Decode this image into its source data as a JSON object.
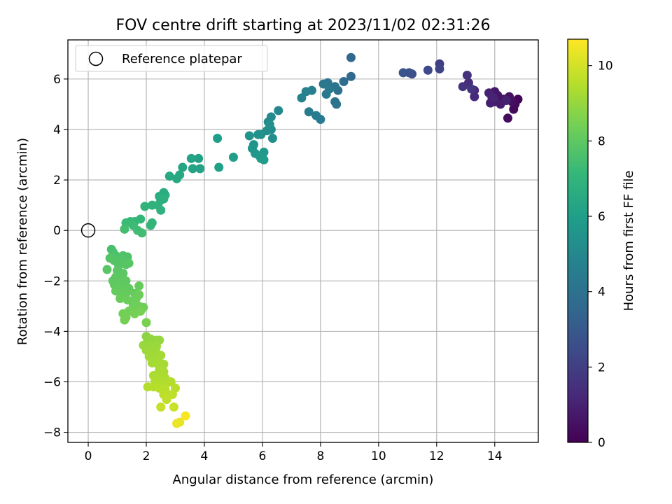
{
  "chart_data": {
    "type": "scatter",
    "title": "FOV centre drift starting at 2023/11/02 02:31:26",
    "xlabel": "Angular distance from reference (arcmin)",
    "ylabel": "Rotation from reference (arcmin)",
    "xlim": [
      -0.7,
      15.5
    ],
    "ylim": [
      -8.4,
      7.55
    ],
    "xticks": [
      0,
      2,
      4,
      6,
      8,
      10,
      12,
      14
    ],
    "yticks": [
      -8,
      -6,
      -4,
      -2,
      0,
      2,
      4,
      6
    ],
    "grid": true,
    "legend": {
      "placement": "top-left",
      "entries": [
        "Reference platepar"
      ]
    },
    "reference_point": {
      "label": "Reference platepar",
      "x": 0,
      "y": 0,
      "marker": "open-circle"
    },
    "colorbar": {
      "label": "Hours from first FF file",
      "range": [
        0,
        10.7
      ],
      "ticks": [
        0,
        2,
        4,
        6,
        8,
        10
      ],
      "colormap": "viridis"
    },
    "series": [
      {
        "name": "FOV centre drift",
        "points": [
          {
            "x": 14.8,
            "y": 5.2,
            "c": 0.1
          },
          {
            "x": 14.7,
            "y": 5.0,
            "c": 0.2
          },
          {
            "x": 14.65,
            "y": 4.8,
            "c": 0.25
          },
          {
            "x": 14.45,
            "y": 4.45,
            "c": 0.3
          },
          {
            "x": 14.6,
            "y": 5.1,
            "c": 0.4
          },
          {
            "x": 14.5,
            "y": 5.3,
            "c": 0.5
          },
          {
            "x": 14.3,
            "y": 5.2,
            "c": 0.55
          },
          {
            "x": 14.1,
            "y": 5.35,
            "c": 0.6
          },
          {
            "x": 14.0,
            "y": 5.5,
            "c": 0.7
          },
          {
            "x": 13.9,
            "y": 5.3,
            "c": 0.75
          },
          {
            "x": 14.0,
            "y": 5.1,
            "c": 0.8
          },
          {
            "x": 14.2,
            "y": 5.0,
            "c": 0.85
          },
          {
            "x": 13.85,
            "y": 5.05,
            "c": 0.9
          },
          {
            "x": 14.4,
            "y": 5.15,
            "c": 0.95
          },
          {
            "x": 13.8,
            "y": 5.45,
            "c": 1.0
          },
          {
            "x": 13.95,
            "y": 5.25,
            "c": 1.05
          },
          {
            "x": 13.3,
            "y": 5.55,
            "c": 1.2
          },
          {
            "x": 13.3,
            "y": 5.3,
            "c": 1.3
          },
          {
            "x": 13.1,
            "y": 5.85,
            "c": 1.4
          },
          {
            "x": 13.05,
            "y": 6.15,
            "c": 1.5
          },
          {
            "x": 12.9,
            "y": 5.7,
            "c": 1.6
          },
          {
            "x": 13.2,
            "y": 5.6,
            "c": 1.7
          },
          {
            "x": 12.1,
            "y": 6.6,
            "c": 2.0
          },
          {
            "x": 12.1,
            "y": 6.4,
            "c": 2.2
          },
          {
            "x": 11.7,
            "y": 6.35,
            "c": 2.4
          },
          {
            "x": 11.15,
            "y": 6.2,
            "c": 2.6
          },
          {
            "x": 11.05,
            "y": 6.25,
            "c": 2.7
          },
          {
            "x": 10.85,
            "y": 6.25,
            "c": 2.8
          },
          {
            "x": 9.05,
            "y": 6.85,
            "c": 3.6
          },
          {
            "x": 9.05,
            "y": 6.1,
            "c": 3.7
          },
          {
            "x": 8.8,
            "y": 5.9,
            "c": 3.8
          },
          {
            "x": 8.6,
            "y": 5.55,
            "c": 3.9
          },
          {
            "x": 8.5,
            "y": 5.1,
            "c": 4.0
          },
          {
            "x": 8.55,
            "y": 5.0,
            "c": 4.05
          },
          {
            "x": 8.5,
            "y": 5.7,
            "c": 4.1
          },
          {
            "x": 8.25,
            "y": 5.85,
            "c": 4.2
          },
          {
            "x": 8.1,
            "y": 5.8,
            "c": 4.25
          },
          {
            "x": 8.2,
            "y": 5.4,
            "c": 4.3
          },
          {
            "x": 8.3,
            "y": 5.6,
            "c": 4.35
          },
          {
            "x": 8.0,
            "y": 4.4,
            "c": 4.4
          },
          {
            "x": 7.85,
            "y": 4.55,
            "c": 4.45
          },
          {
            "x": 7.6,
            "y": 4.7,
            "c": 4.5
          },
          {
            "x": 7.7,
            "y": 5.55,
            "c": 4.6
          },
          {
            "x": 7.5,
            "y": 5.5,
            "c": 4.7
          },
          {
            "x": 7.35,
            "y": 5.25,
            "c": 4.8
          },
          {
            "x": 6.55,
            "y": 4.75,
            "c": 5.0
          },
          {
            "x": 6.3,
            "y": 4.5,
            "c": 5.1
          },
          {
            "x": 6.2,
            "y": 4.3,
            "c": 5.15
          },
          {
            "x": 6.3,
            "y": 4.0,
            "c": 5.2
          },
          {
            "x": 6.15,
            "y": 3.95,
            "c": 5.25
          },
          {
            "x": 6.35,
            "y": 3.65,
            "c": 5.3
          },
          {
            "x": 6.25,
            "y": 4.2,
            "c": 5.35
          },
          {
            "x": 5.95,
            "y": 3.8,
            "c": 5.4
          },
          {
            "x": 5.85,
            "y": 3.8,
            "c": 5.45
          },
          {
            "x": 5.55,
            "y": 3.75,
            "c": 5.5
          },
          {
            "x": 5.7,
            "y": 3.4,
            "c": 5.55
          },
          {
            "x": 5.65,
            "y": 3.25,
            "c": 5.6
          },
          {
            "x": 5.75,
            "y": 3.05,
            "c": 5.65
          },
          {
            "x": 5.9,
            "y": 2.95,
            "c": 5.7
          },
          {
            "x": 6.05,
            "y": 3.1,
            "c": 5.75
          },
          {
            "x": 5.95,
            "y": 2.85,
            "c": 5.8
          },
          {
            "x": 6.05,
            "y": 2.8,
            "c": 5.85
          },
          {
            "x": 5.0,
            "y": 2.9,
            "c": 5.95
          },
          {
            "x": 4.45,
            "y": 3.65,
            "c": 6.0
          },
          {
            "x": 4.5,
            "y": 2.5,
            "c": 6.05
          },
          {
            "x": 3.8,
            "y": 2.85,
            "c": 6.1
          },
          {
            "x": 3.85,
            "y": 2.45,
            "c": 6.15
          },
          {
            "x": 3.55,
            "y": 2.85,
            "c": 6.2
          },
          {
            "x": 3.6,
            "y": 2.45,
            "c": 6.25
          },
          {
            "x": 3.25,
            "y": 2.5,
            "c": 6.3
          },
          {
            "x": 3.15,
            "y": 2.2,
            "c": 6.35
          },
          {
            "x": 3.05,
            "y": 2.05,
            "c": 6.4
          },
          {
            "x": 2.8,
            "y": 2.15,
            "c": 6.45
          },
          {
            "x": 2.6,
            "y": 1.5,
            "c": 6.55
          },
          {
            "x": 2.65,
            "y": 1.4,
            "c": 6.6
          },
          {
            "x": 2.45,
            "y": 1.35,
            "c": 6.65
          },
          {
            "x": 2.5,
            "y": 1.2,
            "c": 6.7
          },
          {
            "x": 2.6,
            "y": 1.25,
            "c": 6.75
          },
          {
            "x": 2.4,
            "y": 1.0,
            "c": 6.8
          },
          {
            "x": 2.5,
            "y": 0.8,
            "c": 6.85
          },
          {
            "x": 2.2,
            "y": 1.0,
            "c": 6.9
          },
          {
            "x": 1.95,
            "y": 0.95,
            "c": 6.95
          },
          {
            "x": 2.2,
            "y": 0.3,
            "c": 7.0
          },
          {
            "x": 2.15,
            "y": 0.2,
            "c": 7.05
          },
          {
            "x": 1.8,
            "y": 0.45,
            "c": 7.1
          },
          {
            "x": 1.6,
            "y": 0.35,
            "c": 7.15
          },
          {
            "x": 1.45,
            "y": 0.35,
            "c": 7.2
          },
          {
            "x": 1.3,
            "y": 0.3,
            "c": 7.25
          },
          {
            "x": 1.55,
            "y": 0.2,
            "c": 7.3
          },
          {
            "x": 1.7,
            "y": 0.0,
            "c": 7.35
          },
          {
            "x": 1.85,
            "y": -0.1,
            "c": 7.4
          },
          {
            "x": 1.25,
            "y": 0.05,
            "c": 7.45
          },
          {
            "x": 0.8,
            "y": -0.75,
            "c": 7.55
          },
          {
            "x": 0.85,
            "y": -0.85,
            "c": 7.6
          },
          {
            "x": 0.95,
            "y": -1.0,
            "c": 7.65
          },
          {
            "x": 1.2,
            "y": -1.0,
            "c": 7.7
          },
          {
            "x": 1.35,
            "y": -1.05,
            "c": 7.72
          },
          {
            "x": 0.9,
            "y": -1.2,
            "c": 7.75
          },
          {
            "x": 1.1,
            "y": -1.2,
            "c": 7.78
          },
          {
            "x": 0.75,
            "y": -1.1,
            "c": 7.8
          },
          {
            "x": 1.05,
            "y": -1.4,
            "c": 7.82
          },
          {
            "x": 1.3,
            "y": -1.35,
            "c": 7.84
          },
          {
            "x": 1.4,
            "y": -1.3,
            "c": 7.86
          },
          {
            "x": 0.65,
            "y": -1.55,
            "c": 7.88
          },
          {
            "x": 1.0,
            "y": -1.6,
            "c": 7.9
          },
          {
            "x": 1.2,
            "y": -1.7,
            "c": 7.92
          },
          {
            "x": 0.95,
            "y": -1.85,
            "c": 7.94
          },
          {
            "x": 1.15,
            "y": -1.9,
            "c": 7.96
          },
          {
            "x": 0.85,
            "y": -2.0,
            "c": 7.98
          },
          {
            "x": 1.3,
            "y": -2.0,
            "c": 8.0
          },
          {
            "x": 0.9,
            "y": -2.15,
            "c": 8.02
          },
          {
            "x": 1.05,
            "y": -2.2,
            "c": 8.04
          },
          {
            "x": 1.25,
            "y": -2.25,
            "c": 8.06
          },
          {
            "x": 1.4,
            "y": -2.3,
            "c": 8.08
          },
          {
            "x": 0.95,
            "y": -2.4,
            "c": 8.1
          },
          {
            "x": 1.1,
            "y": -2.45,
            "c": 8.12
          },
          {
            "x": 1.3,
            "y": -2.5,
            "c": 8.14
          },
          {
            "x": 1.6,
            "y": -2.5,
            "c": 8.16
          },
          {
            "x": 1.75,
            "y": -2.2,
            "c": 8.18
          },
          {
            "x": 1.1,
            "y": -2.7,
            "c": 8.2
          },
          {
            "x": 1.35,
            "y": -2.75,
            "c": 8.22
          },
          {
            "x": 1.5,
            "y": -2.8,
            "c": 8.24
          },
          {
            "x": 1.65,
            "y": -2.7,
            "c": 8.26
          },
          {
            "x": 1.75,
            "y": -2.55,
            "c": 8.28
          },
          {
            "x": 1.55,
            "y": -3.0,
            "c": 8.3
          },
          {
            "x": 1.75,
            "y": -3.0,
            "c": 8.32
          },
          {
            "x": 1.9,
            "y": -3.05,
            "c": 8.34
          },
          {
            "x": 1.4,
            "y": -3.2,
            "c": 8.36
          },
          {
            "x": 1.2,
            "y": -3.3,
            "c": 8.38
          },
          {
            "x": 1.3,
            "y": -3.45,
            "c": 8.4
          },
          {
            "x": 1.25,
            "y": -3.55,
            "c": 8.42
          },
          {
            "x": 1.6,
            "y": -3.3,
            "c": 8.44
          },
          {
            "x": 1.8,
            "y": -3.2,
            "c": 8.46
          },
          {
            "x": 2.0,
            "y": -3.65,
            "c": 8.5
          },
          {
            "x": 2.0,
            "y": -4.2,
            "c": 8.8
          },
          {
            "x": 2.05,
            "y": -4.35,
            "c": 8.85
          },
          {
            "x": 2.15,
            "y": -4.3,
            "c": 8.9
          },
          {
            "x": 2.35,
            "y": -4.35,
            "c": 8.95
          },
          {
            "x": 2.45,
            "y": -4.35,
            "c": 9.0
          },
          {
            "x": 1.9,
            "y": -4.55,
            "c": 9.02
          },
          {
            "x": 2.1,
            "y": -4.55,
            "c": 9.05
          },
          {
            "x": 2.35,
            "y": -4.6,
            "c": 9.08
          },
          {
            "x": 2.0,
            "y": -4.75,
            "c": 9.1
          },
          {
            "x": 2.2,
            "y": -4.8,
            "c": 9.12
          },
          {
            "x": 2.35,
            "y": -4.85,
            "c": 9.14
          },
          {
            "x": 2.1,
            "y": -5.0,
            "c": 9.16
          },
          {
            "x": 2.25,
            "y": -5.05,
            "c": 9.18
          },
          {
            "x": 2.4,
            "y": -5.1,
            "c": 9.2
          },
          {
            "x": 2.5,
            "y": -4.95,
            "c": 9.22
          },
          {
            "x": 2.2,
            "y": -5.25,
            "c": 9.24
          },
          {
            "x": 2.4,
            "y": -5.3,
            "c": 9.26
          },
          {
            "x": 2.6,
            "y": -5.3,
            "c": 9.28
          },
          {
            "x": 2.45,
            "y": -5.55,
            "c": 9.3
          },
          {
            "x": 2.6,
            "y": -5.6,
            "c": 9.32
          },
          {
            "x": 2.25,
            "y": -5.75,
            "c": 9.34
          },
          {
            "x": 2.45,
            "y": -5.8,
            "c": 9.36
          },
          {
            "x": 2.65,
            "y": -5.85,
            "c": 9.38
          },
          {
            "x": 2.3,
            "y": -6.0,
            "c": 9.4
          },
          {
            "x": 2.5,
            "y": -6.05,
            "c": 9.42
          },
          {
            "x": 2.7,
            "y": -6.05,
            "c": 9.44
          },
          {
            "x": 2.85,
            "y": -6.0,
            "c": 9.46
          },
          {
            "x": 2.05,
            "y": -6.2,
            "c": 9.48
          },
          {
            "x": 2.25,
            "y": -6.2,
            "c": 9.5
          },
          {
            "x": 2.45,
            "y": -6.25,
            "c": 9.52
          },
          {
            "x": 2.65,
            "y": -6.3,
            "c": 9.54
          },
          {
            "x": 3.0,
            "y": -6.25,
            "c": 9.56
          },
          {
            "x": 2.6,
            "y": -6.5,
            "c": 9.6
          },
          {
            "x": 2.75,
            "y": -6.5,
            "c": 9.62
          },
          {
            "x": 2.9,
            "y": -6.5,
            "c": 9.64
          },
          {
            "x": 2.7,
            "y": -6.7,
            "c": 9.7
          },
          {
            "x": 2.5,
            "y": -7.0,
            "c": 9.8
          },
          {
            "x": 2.95,
            "y": -7.0,
            "c": 9.85
          },
          {
            "x": 3.15,
            "y": -7.6,
            "c": 10.3
          },
          {
            "x": 3.05,
            "y": -7.65,
            "c": 10.4
          },
          {
            "x": 3.35,
            "y": -7.35,
            "c": 10.6
          }
        ]
      }
    ]
  }
}
